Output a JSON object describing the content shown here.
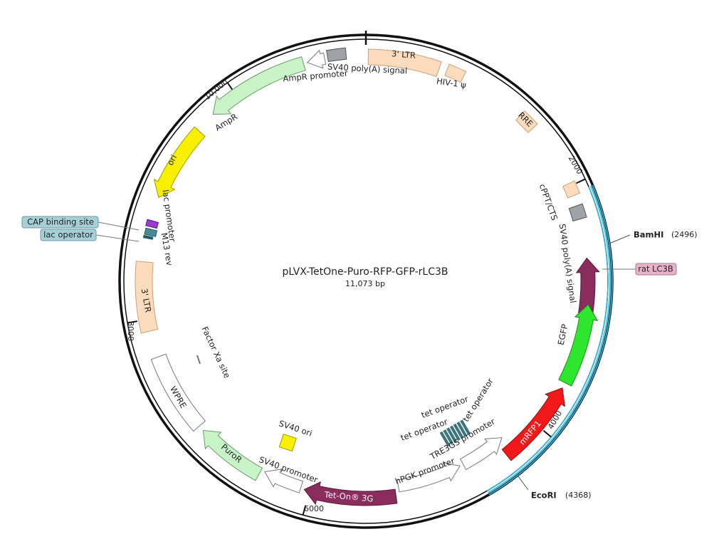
{
  "map": {
    "title": "pLVX-TetOne-Puro-RFP-GFP-rLC3B",
    "length": {
      "value": 11073,
      "label": "11,073 bp"
    },
    "ticks": [
      {
        "value": 2000,
        "label": "2000"
      },
      {
        "value": 4000,
        "label": "4000"
      },
      {
        "value": 6000,
        "label": "6000"
      },
      {
        "value": 8000,
        "label": "8000"
      },
      {
        "value": 10000,
        "label": "10,000"
      }
    ],
    "sites": [
      {
        "name": "BamHI",
        "position": {
          "value": 2496,
          "label": "(2496)"
        }
      },
      {
        "name": "EcoRI",
        "position": {
          "value": 4368,
          "label": "(4368)"
        }
      }
    ],
    "features": [
      {
        "name": "3' LTR"
      },
      {
        "name": "HIV-1 ψ"
      },
      {
        "name": "RRE"
      },
      {
        "name": "cPPT/CTS"
      },
      {
        "name": "SV40 poly(A) signal"
      },
      {
        "name": "EGFP"
      },
      {
        "name": "mRFP1"
      },
      {
        "name": "TRE3GS promoter"
      },
      {
        "name": "hPGK promoter"
      },
      {
        "name": "Tet-On® 3G"
      },
      {
        "name": "SV40 promoter"
      },
      {
        "name": "PuroR"
      },
      {
        "name": "WPRE"
      },
      {
        "name": "3' LTR"
      },
      {
        "name": "lac promoter"
      },
      {
        "name": "M13 rev"
      },
      {
        "name": "ori"
      },
      {
        "name": "AmpR"
      },
      {
        "name": "AmpR promoter"
      },
      {
        "name": "SV40 poly(A) signal"
      },
      {
        "name": "Factor Xa site"
      },
      {
        "name": "SV40 ori"
      },
      {
        "name": "tet operator"
      },
      {
        "name": "tet operator"
      },
      {
        "name": "tet operator"
      }
    ],
    "callouts": [
      "CAP binding site",
      "lac operator",
      "rat LC3B"
    ]
  }
}
